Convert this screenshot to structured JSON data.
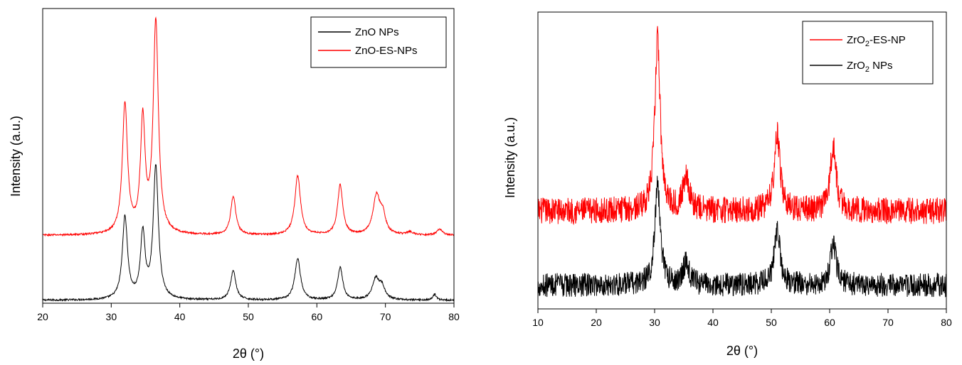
{
  "chart_data": [
    {
      "type": "line",
      "title": "",
      "xlabel": "2θ (°)",
      "ylabel": "Intensity (a.u.)",
      "xlim": [
        20,
        80
      ],
      "ylim": [
        0,
        100
      ],
      "xticks": [
        20,
        30,
        40,
        50,
        60,
        70,
        80
      ],
      "legend_position": "top-right",
      "series": [
        {
          "name": "ZnO NPs",
          "color": "#000000",
          "baseline": 1,
          "noise": 0.3,
          "peaks": [
            {
              "x": 32.0,
              "height": 28,
              "width": 0.45
            },
            {
              "x": 34.6,
              "height": 22,
              "width": 0.4
            },
            {
              "x": 36.5,
              "height": 45,
              "width": 0.45
            },
            {
              "x": 47.8,
              "height": 10,
              "width": 0.45
            },
            {
              "x": 57.2,
              "height": 14,
              "width": 0.5
            },
            {
              "x": 63.4,
              "height": 11,
              "width": 0.45
            },
            {
              "x": 68.6,
              "height": 7,
              "width": 0.6
            },
            {
              "x": 69.5,
              "height": 4,
              "width": 0.5
            },
            {
              "x": 77.2,
              "height": 2,
              "width": 0.3
            }
          ]
        },
        {
          "name": "ZnO-ES-NPs",
          "color": "#ff0000",
          "baseline": 23,
          "noise": 0.3,
          "peaks": [
            {
              "x": 32.0,
              "height": 44,
              "width": 0.45
            },
            {
              "x": 34.6,
              "height": 38,
              "width": 0.4
            },
            {
              "x": 36.5,
              "height": 72,
              "width": 0.45
            },
            {
              "x": 47.8,
              "height": 13,
              "width": 0.45
            },
            {
              "x": 57.2,
              "height": 20,
              "width": 0.5
            },
            {
              "x": 63.4,
              "height": 17,
              "width": 0.45
            },
            {
              "x": 68.7,
              "height": 13,
              "width": 0.6
            },
            {
              "x": 69.6,
              "height": 6,
              "width": 0.5
            },
            {
              "x": 73.6,
              "height": 1,
              "width": 0.5
            },
            {
              "x": 77.9,
              "height": 2,
              "width": 0.5
            }
          ]
        }
      ]
    },
    {
      "type": "line",
      "title": "",
      "xlabel": "2θ (°)",
      "ylabel": "Intensity (a.u.)",
      "xlim": [
        10,
        80
      ],
      "ylim": [
        0,
        100
      ],
      "xticks": [
        10,
        20,
        30,
        40,
        50,
        60,
        70,
        80
      ],
      "legend_position": "top-right",
      "series": [
        {
          "name": "ZrO2-ES-NP",
          "color": "#ff0000",
          "baseline": 33,
          "noise": 4.5,
          "peaks": [
            {
              "x": 30.5,
              "height": 58,
              "width": 0.55
            },
            {
              "x": 35.4,
              "height": 12,
              "width": 0.6
            },
            {
              "x": 51.0,
              "height": 26,
              "width": 0.6
            },
            {
              "x": 60.6,
              "height": 22,
              "width": 0.6
            }
          ]
        },
        {
          "name": "ZrO2 NPs",
          "color": "#000000",
          "baseline": 8,
          "noise": 4,
          "peaks": [
            {
              "x": 30.5,
              "height": 34,
              "width": 0.55
            },
            {
              "x": 35.4,
              "height": 8,
              "width": 0.6
            },
            {
              "x": 51.0,
              "height": 19,
              "width": 0.6
            },
            {
              "x": 60.6,
              "height": 14,
              "width": 0.6
            }
          ]
        }
      ]
    }
  ],
  "legend_a": {
    "item1": "ZnO NPs",
    "item2": "ZnO-ES-NPs"
  },
  "legend_b": {
    "item1_main": "ZrO",
    "item1_sub": "2",
    "item1_rest": "-ES-NP",
    "item2_main": "ZrO",
    "item2_sub": "2",
    "item2_rest": " NPs"
  }
}
